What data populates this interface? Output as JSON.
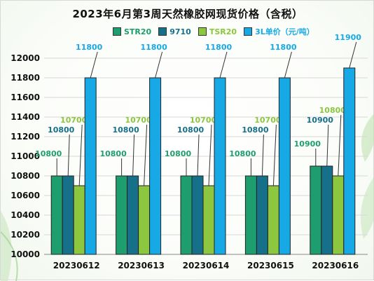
{
  "chart_data": {
    "type": "bar",
    "title": "2023年6月第3周天然橡胶网现货价格（含税）",
    "categories": [
      "20230612",
      "20230613",
      "20230614",
      "20230615",
      "20230616"
    ],
    "series": [
      {
        "name": "STR20",
        "color": "#1e9e6e",
        "values": [
          10800,
          10800,
          10800,
          10800,
          10900
        ]
      },
      {
        "name": "9710",
        "color": "#17708a",
        "values": [
          10800,
          10800,
          10800,
          10800,
          10900
        ]
      },
      {
        "name": "TSR20",
        "color": "#8dc63f",
        "values": [
          10700,
          10700,
          10700,
          10700,
          10800
        ]
      },
      {
        "name": "3L单价（元/吨）",
        "color": "#16a9e6",
        "values": [
          11800,
          11800,
          11800,
          11800,
          11900
        ]
      }
    ],
    "ylim": [
      10000,
      12000
    ],
    "yticks": [
      10000,
      10200,
      10400,
      10600,
      10800,
      11000,
      11200,
      11400,
      11600,
      11800,
      12000
    ],
    "grid": true,
    "legend_position": "top"
  }
}
